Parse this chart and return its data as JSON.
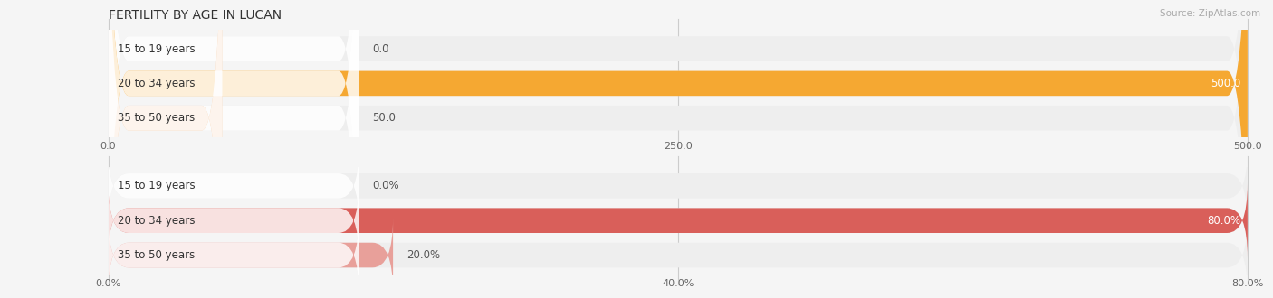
{
  "title": "FERTILITY BY AGE IN LUCAN",
  "source": "Source: ZipAtlas.com",
  "top_chart": {
    "categories": [
      "15 to 19 years",
      "20 to 34 years",
      "35 to 50 years"
    ],
    "values": [
      0.0,
      500.0,
      50.0
    ],
    "xlim": [
      0,
      500
    ],
    "xticks": [
      0.0,
      250.0,
      500.0
    ],
    "bar_colors": [
      "#f5ba88",
      "#f5a832",
      "#f5c8a0"
    ],
    "bar_height": 0.72,
    "bg_bar_color": "#eeeeee"
  },
  "bottom_chart": {
    "categories": [
      "15 to 19 years",
      "20 to 34 years",
      "35 to 50 years"
    ],
    "values": [
      0.0,
      80.0,
      20.0
    ],
    "xlim": [
      0,
      80
    ],
    "xticks": [
      0.0,
      40.0,
      80.0
    ],
    "bar_colors": [
      "#e08888",
      "#d95f5a",
      "#e8a09a"
    ],
    "bar_height": 0.72,
    "bg_bar_color": "#eeeeee"
  },
  "fig_bg_color": "#f5f5f5",
  "title_fontsize": 10,
  "label_fontsize": 8.5,
  "tick_fontsize": 8,
  "bar_label_fontsize": 8.5
}
